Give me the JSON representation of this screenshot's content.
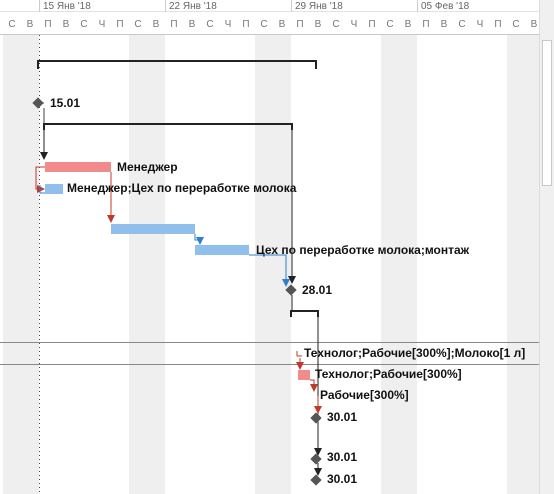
{
  "timescale": {
    "weeks": [
      "15 Янв '18",
      "22 Янв '18",
      "29 Янв '18",
      "05 Фев '18"
    ],
    "days": [
      "С",
      "В",
      "П",
      "В",
      "С",
      "Ч",
      "П",
      "С",
      "В",
      "П",
      "В",
      "С",
      "Ч",
      "П",
      "С",
      "В",
      "П",
      "В",
      "С",
      "Ч",
      "П",
      "С",
      "В",
      "П",
      "В",
      "С",
      "Ч",
      "П",
      "С",
      "В",
      "П",
      "В",
      "С",
      "Ч",
      "П",
      "С",
      "В",
      "П",
      "В"
    ]
  },
  "tasks": {
    "milestone_start": "15.01",
    "manager": "Менеджер",
    "manager_milk": "Менеджер;Цех по переработке молока",
    "milk_assembly": "Цех по переработке молока;монтаж",
    "milestone_end": "28.01",
    "technologist_full": "Технолог;Рабочие[300%];Молоко[1 л]",
    "technologist": "Технолог;Рабочие[300%]",
    "workers": "Рабочие[300%]",
    "ms_a": "30.01",
    "ms_b": "30.01",
    "ms_c": "30.01"
  },
  "colors": {
    "critical_bar": "#f28b8b",
    "normal_bar": "#8fbfea",
    "critical_link": "#c0392b",
    "normal_link": "#2f7fd0",
    "summary": "#222222",
    "milestone": "#555555",
    "nonworking_shade": "#efefef"
  }
}
